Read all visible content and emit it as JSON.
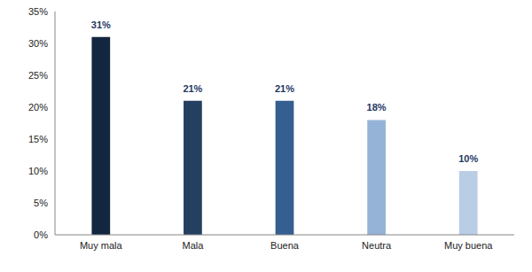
{
  "chart_data": {
    "type": "bar",
    "categories": [
      "Muy mala",
      "Mala",
      "Buena",
      "Neutra",
      "Muy buena"
    ],
    "values": [
      31,
      21,
      21,
      18,
      10
    ],
    "value_labels": [
      "31%",
      "21%",
      "21%",
      "18%",
      "10%"
    ],
    "colors": [
      "#13263f",
      "#243f5f",
      "#345f90",
      "#95b3d7",
      "#b9cde5"
    ],
    "ylim": [
      0,
      35
    ],
    "yticks": [
      {
        "value": 0,
        "label": "0%"
      },
      {
        "value": 5,
        "label": "5%"
      },
      {
        "value": 10,
        "label": "10%"
      },
      {
        "value": 15,
        "label": "15%"
      },
      {
        "value": 20,
        "label": "20%"
      },
      {
        "value": 25,
        "label": "25%"
      },
      {
        "value": 30,
        "label": "30%"
      },
      {
        "value": 35,
        "label": "35%"
      }
    ],
    "grid": false,
    "data_labels": true
  }
}
